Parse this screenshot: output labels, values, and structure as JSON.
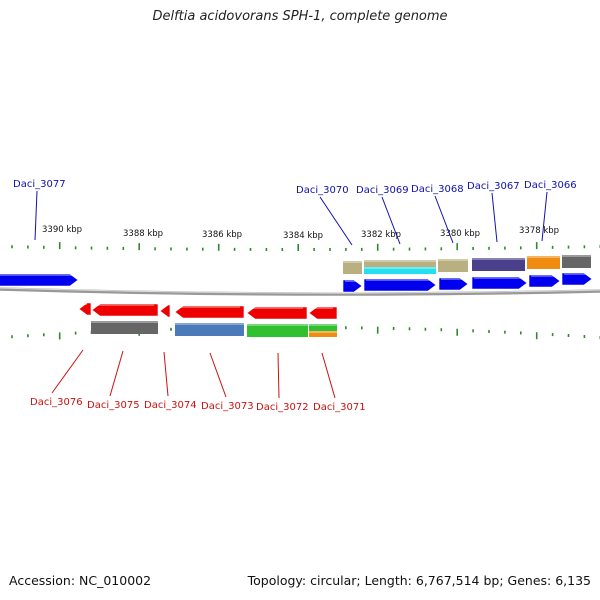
{
  "title": "Delftia acidovorans SPH-1, complete genome",
  "footer": {
    "accession": "Accession: NC_010002",
    "summary": "Topology: circular; Length: 6,767,514 bp; Genes: 6,135"
  },
  "colors": {
    "forward_gene": "#0000ee",
    "reverse_gene": "#ee0000",
    "forward_label": "#1010b0",
    "reverse_label": "#cc1111",
    "tick": "#2d8a2d",
    "backbone": "#888888"
  },
  "scale_labels": [
    "3390 kbp",
    "3388 kbp",
    "3386 kbp",
    "3384 kbp",
    "3382 kbp",
    "3380 kbp",
    "3378 kbp"
  ],
  "genes_forward": [
    {
      "id": "Daci_3077",
      "domain_color": null
    },
    {
      "id": "Daci_3070",
      "domain_color": "#b8b080"
    },
    {
      "id": "Daci_3069",
      "domain_color": "#b8b080",
      "domain_color_2": "#22e0f0"
    },
    {
      "id": "Daci_3068",
      "domain_color": "#b8b080"
    },
    {
      "id": "Daci_3067",
      "domain_color": "#4a3f8a"
    },
    {
      "id": "Daci_3066",
      "domain_color": "#f08c10"
    },
    {
      "id": "",
      "domain_color": "#666666"
    }
  ],
  "genes_reverse": [
    {
      "id": "Daci_3076",
      "domain_color": null
    },
    {
      "id": "Daci_3075",
      "domain_color": "#666666"
    },
    {
      "id": "Daci_3074",
      "domain_color": null
    },
    {
      "id": "Daci_3073",
      "domain_color": "#4a7ab8"
    },
    {
      "id": "Daci_3072",
      "domain_color": "#30c030"
    },
    {
      "id": "Daci_3071",
      "domain_color": "#30c030",
      "domain_color_2": "#f08c10"
    }
  ]
}
